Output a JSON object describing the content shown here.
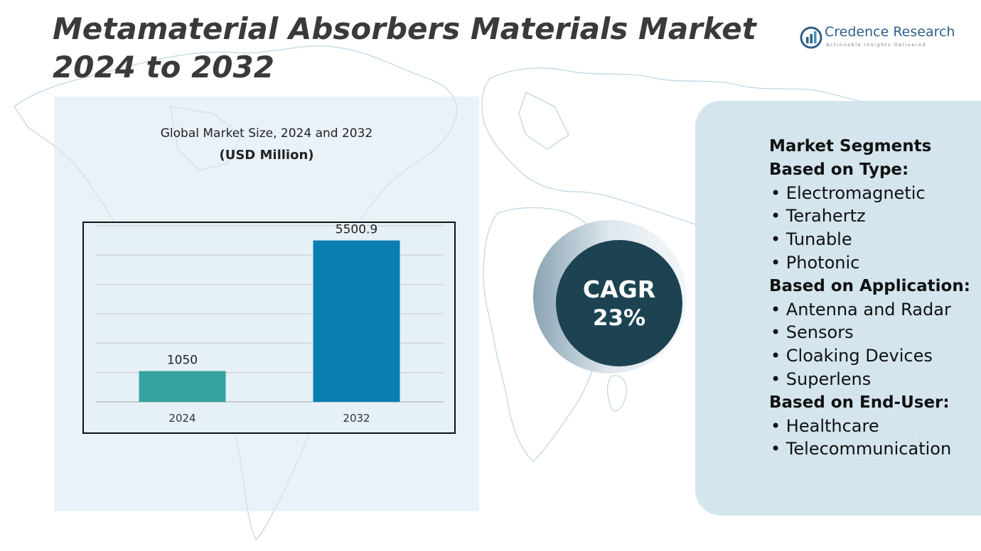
{
  "title": "Metamaterial Absorbers Materials Market 2024 to 2032",
  "brand": {
    "name": "Credence Research",
    "tagline": "Actionable Insights Delivered",
    "logo_icon": "credence-logo-icon"
  },
  "chart": {
    "heading": "Global Market Size, 2024 and 2032",
    "unit_label": "(USD Million)"
  },
  "chart_data": {
    "type": "bar",
    "title": "Global Market Size, 2024 and 2032",
    "subtitle": "(USD Million)",
    "categories": [
      "2024",
      "2032"
    ],
    "values": [
      1050,
      5500.9
    ],
    "value_labels": [
      "1050",
      "5500.9"
    ],
    "colors": [
      "#35a3a0",
      "#0a7eb0"
    ],
    "ylim": [
      0,
      6000
    ],
    "grid": true,
    "legend": "none"
  },
  "cagr": {
    "label": "CAGR",
    "value": "23%"
  },
  "segments": {
    "heading": "Market Segments",
    "groups": [
      {
        "title": "Based on Type:",
        "items": [
          "Electromagnetic",
          "Terahertz",
          "Tunable",
          "Photonic"
        ]
      },
      {
        "title": "Based on Application:",
        "items": [
          "Antenna and Radar",
          "Sensors",
          "Cloaking Devices",
          "Superlens"
        ]
      },
      {
        "title": "Based on End-User:",
        "items": [
          "Healthcare",
          "Telecommunication"
        ]
      }
    ]
  },
  "colors": {
    "title_text": "#3a3a3a",
    "cagr_circle": "#1d4352",
    "panel_bg": "#d7e8f4",
    "map_line": "#a9c8dc"
  }
}
